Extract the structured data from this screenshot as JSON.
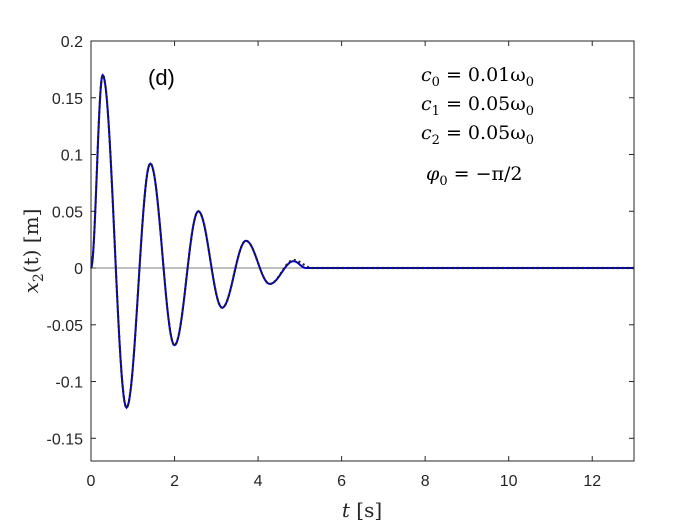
{
  "chart_data": {
    "type": "line",
    "panel_label": "(d)",
    "xlabel_var": "t",
    "xlabel_unit": "[s]",
    "ylabel_var": "x",
    "ylabel_sub": "2",
    "ylabel_arg": "(t)",
    "ylabel_unit": "[m]",
    "xlim": [
      0,
      13
    ],
    "ylim": [
      -0.17,
      0.2
    ],
    "xticks": [
      0,
      2,
      4,
      6,
      8,
      10,
      12
    ],
    "xtick_labels": [
      "0",
      "2",
      "4",
      "6",
      "8",
      "10",
      "12"
    ],
    "yticks": [
      -0.15,
      -0.1,
      -0.05,
      0,
      0.05,
      0.1,
      0.15,
      0.2
    ],
    "ytick_labels": [
      "-0.15",
      "-0.1",
      "-0.05",
      "0",
      "0.05",
      "0.1",
      "0.15",
      "0.2"
    ],
    "grid": false,
    "zero_line": true,
    "annotations": [
      {
        "lhs": "c",
        "sub": "0",
        "rhs": " = 0.01ω",
        "rhs_sub": "0"
      },
      {
        "lhs": "c",
        "sub": "1",
        "rhs": " = 0.05ω",
        "rhs_sub": "0"
      },
      {
        "lhs": "c",
        "sub": "2",
        "rhs": " = 0.05ω",
        "rhs_sub": "0"
      },
      {
        "lhs": "φ",
        "sub": "0",
        "rhs": " = −π/2",
        "rhs_sub": ""
      }
    ],
    "series": [
      {
        "style": "solid",
        "color": "#0000cc",
        "points": [
          [
            0,
            0
          ],
          [
            0.28,
            0.17
          ],
          [
            0.85,
            -0.123
          ],
          [
            1.42,
            0.092
          ],
          [
            2.0,
            -0.068
          ],
          [
            2.57,
            0.05
          ],
          [
            3.14,
            -0.035
          ],
          [
            3.71,
            0.024
          ],
          [
            4.28,
            -0.014
          ],
          [
            4.85,
            0.006
          ],
          [
            5.15,
            0.0
          ],
          [
            5.4,
            0.0
          ],
          [
            13,
            0.0
          ]
        ]
      },
      {
        "style": "dotted",
        "color": "#222222",
        "points": [
          [
            0,
            0
          ],
          [
            0.28,
            0.17
          ],
          [
            0.85,
            -0.123
          ],
          [
            1.42,
            0.092
          ],
          [
            2.0,
            -0.068
          ],
          [
            2.57,
            0.05
          ],
          [
            3.14,
            -0.035
          ],
          [
            3.71,
            0.024
          ],
          [
            4.28,
            -0.014
          ],
          [
            4.85,
            0.007
          ],
          [
            5.3,
            0.0
          ],
          [
            5.55,
            0.0
          ],
          [
            13,
            0.0
          ]
        ]
      }
    ]
  }
}
